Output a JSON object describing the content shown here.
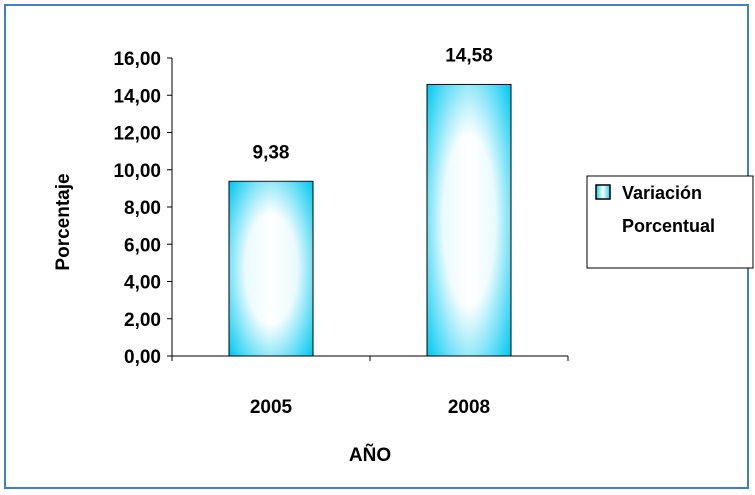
{
  "chart_data": {
    "type": "bar",
    "categories": [
      "2005",
      "2008"
    ],
    "series": [
      {
        "name": "Variación Porcentual",
        "values": [
          9.38,
          14.58
        ]
      }
    ],
    "data_labels": [
      "9,38",
      "14,58"
    ],
    "xlabel": "AÑO",
    "ylabel": "Porcentaje",
    "ylim": [
      0,
      16
    ],
    "yticks": [
      "0,00",
      "2,00",
      "4,00",
      "6,00",
      "8,00",
      "10,00",
      "12,00",
      "14,00",
      "16,00"
    ],
    "grid": false,
    "legend_position": "right",
    "legend_lines": [
      "Variación",
      "Porcentual"
    ],
    "colors": {
      "bar_edge": "#00c8f0",
      "bar_center": "#ffffff",
      "frame": "#3f7fc4"
    }
  }
}
